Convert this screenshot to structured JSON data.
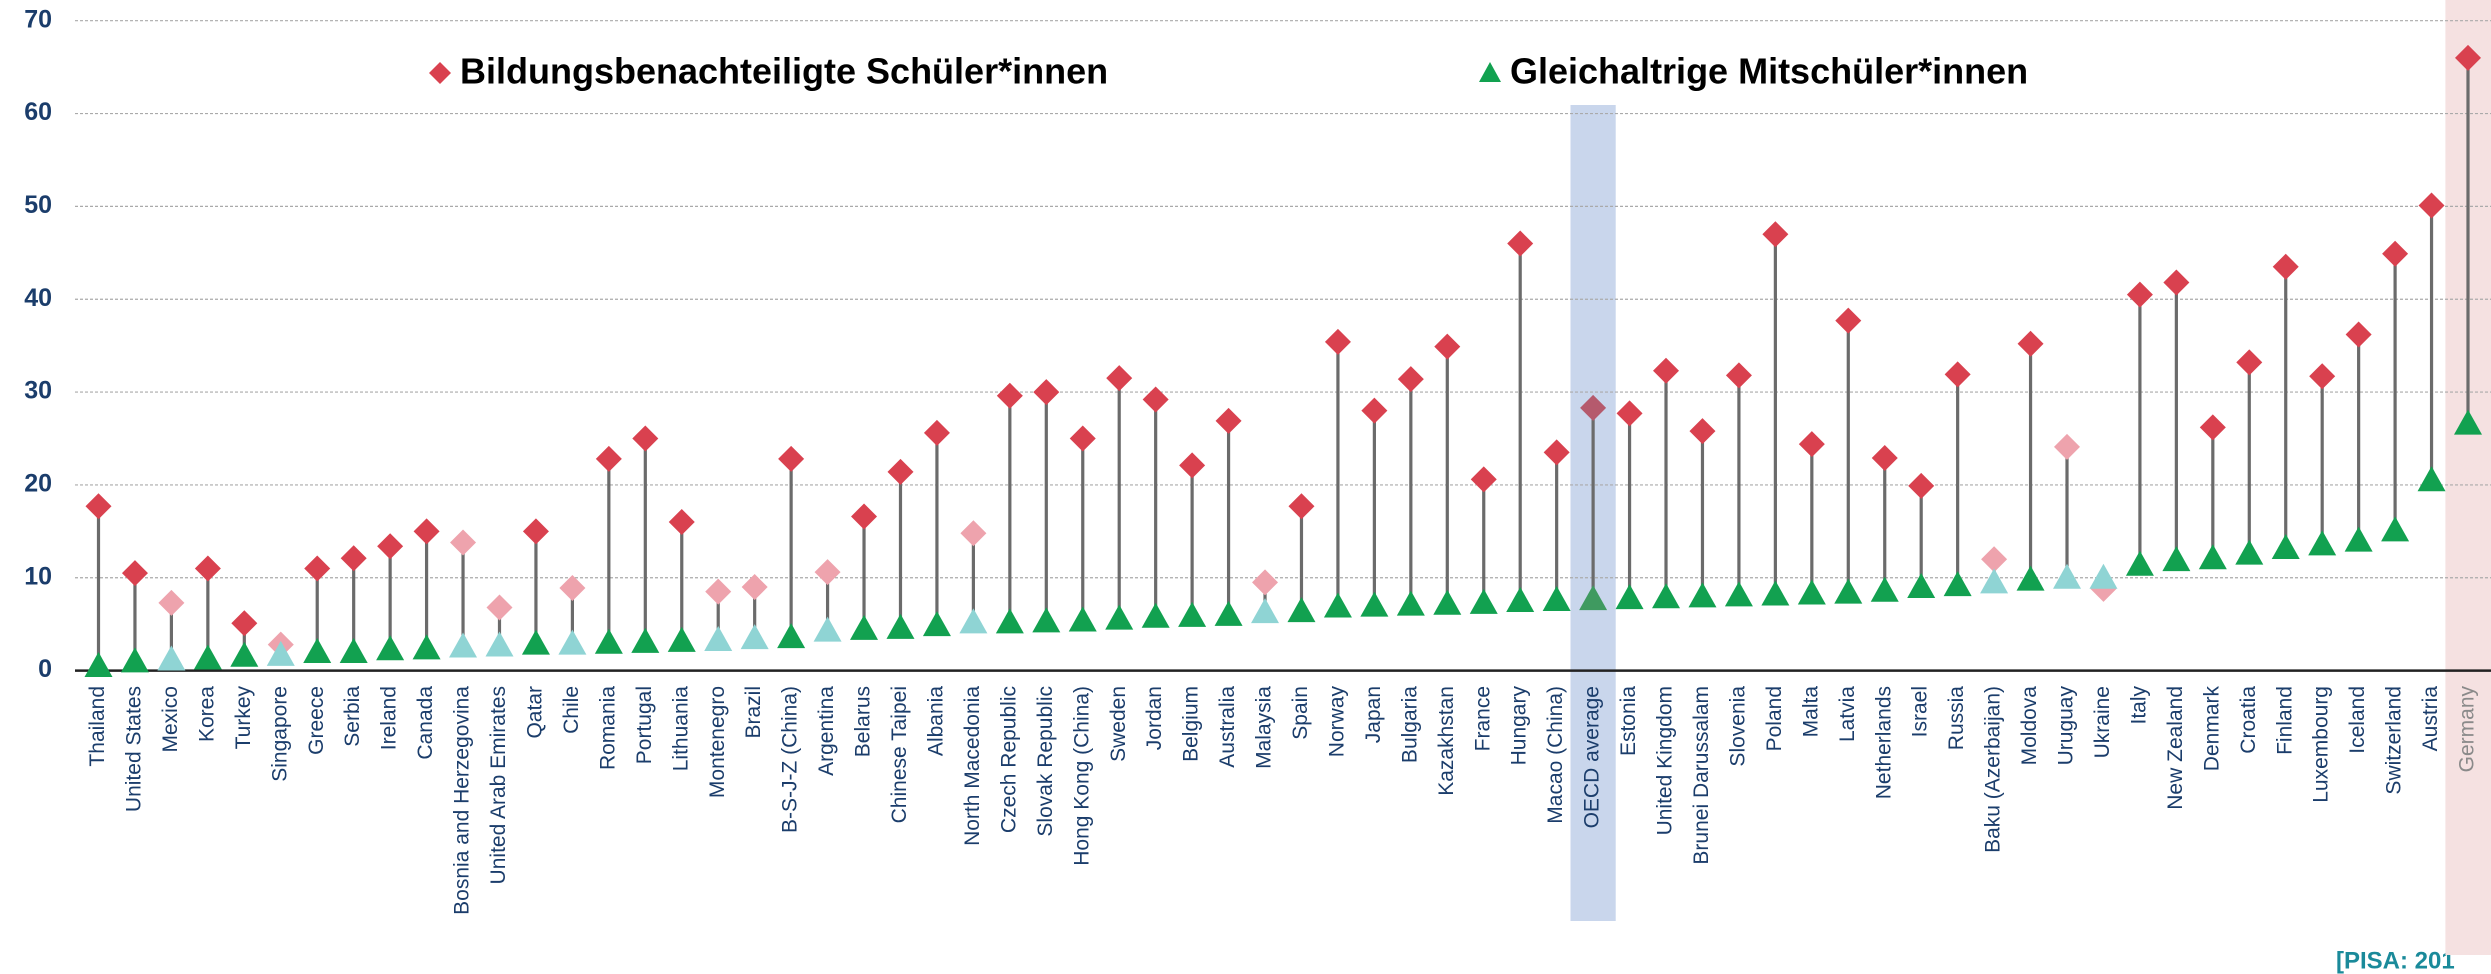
{
  "chart_data": {
    "type": "dumbbell",
    "categories": [
      "Thailand",
      "United States",
      "Mexico",
      "Korea",
      "Turkey",
      "Singapore",
      "Greece",
      "Serbia",
      "Ireland",
      "Canada",
      "Bosnia and Herzegovina",
      "United Arab Emirates",
      "Qatar",
      "Chile",
      "Romania",
      "Portugal",
      "Lithuania",
      "Montenegro",
      "Brazil",
      "B-S-J-Z (China)",
      "Argentina",
      "Belarus",
      "Chinese Taipei",
      "Albania",
      "North Macedonia",
      "Czech Republic",
      "Slovak Republic",
      "Hong Kong (China)",
      "Sweden",
      "Jordan",
      "Belgium",
      "Australia",
      "Malaysia",
      "Spain",
      "Norway",
      "Japan",
      "Bulgaria",
      "Kazakhstan",
      "France",
      "Hungary",
      "Macao (China)",
      "OECD average",
      "Estonia",
      "United Kingdom",
      "Brunei Darussalam",
      "Slovenia",
      "Poland",
      "Malta",
      "Latvia",
      "Netherlands",
      "Israel",
      "Russia",
      "Baku (Azerbaijan)",
      "Moldova",
      "Uruguay",
      "Ukraine",
      "Italy",
      "New Zealand",
      "Denmark",
      "Croatia",
      "Finland",
      "Luxembourg",
      "Iceland",
      "Switzerland",
      "Austria",
      "Germany"
    ],
    "series": [
      {
        "name": "Bildungsbenachteiligte Schüler*innen",
        "color": "#d9414f",
        "marker": "diamond",
        "values": [
          17.7,
          10.5,
          7.3,
          11.0,
          5.1,
          2.8,
          11.0,
          12.1,
          13.4,
          15.0,
          13.8,
          6.8,
          15.0,
          8.9,
          22.8,
          25.0,
          16.0,
          8.5,
          9.0,
          22.8,
          10.6,
          16.6,
          21.4,
          25.6,
          14.8,
          29.6,
          30.0,
          25.0,
          31.5,
          29.2,
          22.1,
          26.9,
          9.5,
          17.7,
          35.4,
          28.0,
          31.4,
          34.9,
          20.6,
          46.0,
          23.5,
          28.3,
          27.7,
          32.3,
          25.8,
          31.8,
          47.0,
          24.4,
          37.7,
          22.9,
          19.9,
          31.9,
          12.0,
          35.2,
          24.1,
          8.8,
          40.5,
          41.8,
          26.2,
          33.2,
          43.5,
          31.7,
          36.2,
          44.9,
          50.1,
          66.0
        ],
        "colors": [
          "#d9414f",
          "#d9414f",
          "#eea3ad",
          "#d9414f",
          "#d9414f",
          "#eea3ad",
          "#d9414f",
          "#d9414f",
          "#d9414f",
          "#d9414f",
          "#eea3ad",
          "#eea3ad",
          "#d9414f",
          "#eea3ad",
          "#d9414f",
          "#d9414f",
          "#d9414f",
          "#eea3ad",
          "#eea3ad",
          "#d9414f",
          "#eea3ad",
          "#d9414f",
          "#d9414f",
          "#d9414f",
          "#eea3ad",
          "#d9414f",
          "#d9414f",
          "#d9414f",
          "#d9414f",
          "#d9414f",
          "#d9414f",
          "#d9414f",
          "#eea3ad",
          "#d9414f",
          "#d9414f",
          "#d9414f",
          "#d9414f",
          "#d9414f",
          "#d9414f",
          "#d9414f",
          "#d9414f",
          "#b55a6d",
          "#d9414f",
          "#d9414f",
          "#d9414f",
          "#d9414f",
          "#d9414f",
          "#d9414f",
          "#d9414f",
          "#d9414f",
          "#d9414f",
          "#d9414f",
          "#eea3ad",
          "#d9414f",
          "#eea3ad",
          "#eea3ad",
          "#d9414f",
          "#d9414f",
          "#d9414f",
          "#d9414f",
          "#d9414f",
          "#d9414f",
          "#d9414f",
          "#d9414f",
          "#d9414f",
          "#d9414f"
        ]
      },
      {
        "name": "Gleichaltrige Mitschüler*innen",
        "color": "#12a150",
        "marker": "triangle",
        "values": [
          0.5,
          1.0,
          1.2,
          1.3,
          1.6,
          1.7,
          2.0,
          2.0,
          2.3,
          2.4,
          2.6,
          2.7,
          2.9,
          2.9,
          3.0,
          3.1,
          3.2,
          3.3,
          3.5,
          3.6,
          4.3,
          4.5,
          4.6,
          4.9,
          5.2,
          5.2,
          5.3,
          5.4,
          5.6,
          5.8,
          5.9,
          6.0,
          6.3,
          6.4,
          6.9,
          7.0,
          7.1,
          7.2,
          7.3,
          7.5,
          7.6,
          7.7,
          7.8,
          7.9,
          8.0,
          8.1,
          8.2,
          8.3,
          8.4,
          8.6,
          9.0,
          9.2,
          9.5,
          9.8,
          10.0,
          10.0,
          11.4,
          11.9,
          12.1,
          12.6,
          13.2,
          13.6,
          14.0,
          15.1,
          20.5,
          26.6
        ],
        "colors": [
          "#12a150",
          "#12a150",
          "#8fd4d4",
          "#12a150",
          "#12a150",
          "#8fd4d4",
          "#12a150",
          "#12a150",
          "#12a150",
          "#12a150",
          "#8fd4d4",
          "#8fd4d4",
          "#12a150",
          "#8fd4d4",
          "#12a150",
          "#12a150",
          "#12a150",
          "#8fd4d4",
          "#8fd4d4",
          "#12a150",
          "#8fd4d4",
          "#12a150",
          "#12a150",
          "#12a150",
          "#8fd4d4",
          "#12a150",
          "#12a150",
          "#12a150",
          "#12a150",
          "#12a150",
          "#12a150",
          "#12a150",
          "#8fd4d4",
          "#12a150",
          "#12a150",
          "#12a150",
          "#12a150",
          "#12a150",
          "#12a150",
          "#12a150",
          "#12a150",
          "#3f9a60",
          "#12a150",
          "#12a150",
          "#12a150",
          "#12a150",
          "#12a150",
          "#12a150",
          "#12a150",
          "#12a150",
          "#12a150",
          "#12a150",
          "#8fd4d4",
          "#12a150",
          "#8fd4d4",
          "#8fd4d4",
          "#12a150",
          "#12a150",
          "#12a150",
          "#12a150",
          "#12a150",
          "#12a150",
          "#12a150",
          "#12a150",
          "#12a150",
          "#12a150"
        ]
      }
    ],
    "highlighted": [
      {
        "category": "OECD average",
        "color": "#c9d6ec"
      },
      {
        "category": "Germany",
        "color": "#f5e1e1"
      }
    ],
    "ylim": [
      0,
      70
    ],
    "yticks": [
      0,
      10,
      20,
      30,
      40,
      50,
      60,
      70
    ],
    "grid": true,
    "source": "[PISA: 201"
  }
}
